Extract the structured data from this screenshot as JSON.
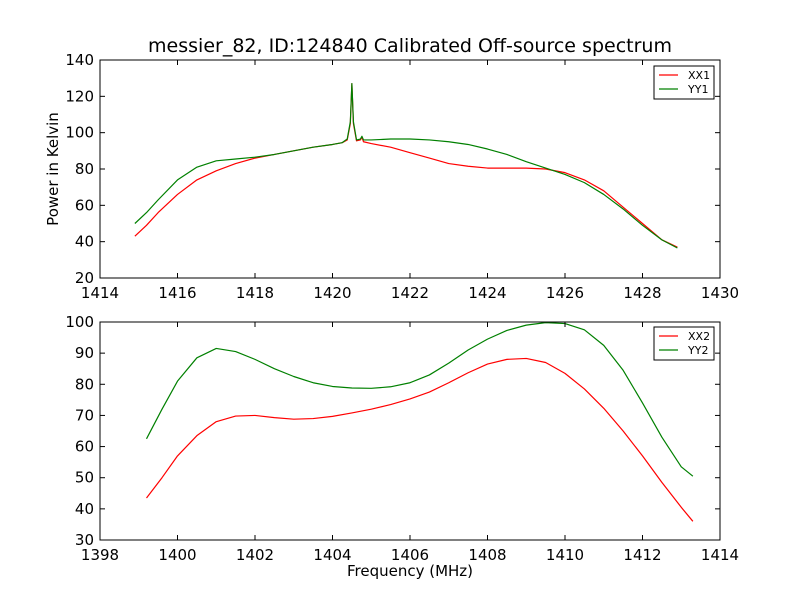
{
  "chart_data": [
    {
      "type": "line",
      "title": "messier_82, ID:124840 Calibrated Off-source spectrum",
      "xlabel": "",
      "ylabel": "Power in Kelvin",
      "xlim": [
        1414,
        1430
      ],
      "ylim": [
        20,
        140
      ],
      "xticks": [
        1414,
        1416,
        1418,
        1420,
        1422,
        1424,
        1426,
        1428,
        1430
      ],
      "yticks": [
        20,
        40,
        60,
        80,
        100,
        120,
        140
      ],
      "grid": false,
      "legend": "top-right",
      "series": [
        {
          "name": "XX1",
          "color": "#ff0000",
          "x": [
            1414.9,
            1415.2,
            1415.5,
            1416.0,
            1416.5,
            1417.0,
            1417.5,
            1418.0,
            1418.5,
            1419.0,
            1419.5,
            1420.0,
            1420.25,
            1420.38,
            1420.46,
            1420.5,
            1420.54,
            1420.62,
            1420.72,
            1420.76,
            1420.8,
            1421.0,
            1421.5,
            1422.0,
            1422.5,
            1423.0,
            1423.5,
            1424.0,
            1424.5,
            1425.0,
            1425.5,
            1426.0,
            1426.5,
            1427.0,
            1427.5,
            1428.0,
            1428.5,
            1428.9
          ],
          "y": [
            43,
            49,
            56,
            66,
            74,
            79,
            83,
            86,
            88,
            90,
            92,
            93.5,
            94.5,
            96,
            105,
            127,
            105,
            95.5,
            96,
            97.5,
            95,
            94,
            92,
            89,
            86,
            83,
            81.5,
            80.5,
            80.5,
            80.5,
            80,
            78,
            74,
            68,
            59,
            50,
            41,
            37
          ]
        },
        {
          "name": "YY1",
          "color": "#008000",
          "x": [
            1414.9,
            1415.2,
            1415.5,
            1416.0,
            1416.5,
            1417.0,
            1417.5,
            1418.0,
            1418.5,
            1419.0,
            1419.5,
            1420.0,
            1420.25,
            1420.38,
            1420.46,
            1420.5,
            1420.54,
            1420.62,
            1420.72,
            1420.76,
            1420.8,
            1421.0,
            1421.5,
            1422.0,
            1422.5,
            1423.0,
            1423.5,
            1424.0,
            1424.5,
            1425.0,
            1425.5,
            1426.0,
            1426.5,
            1427.0,
            1427.5,
            1428.0,
            1428.5,
            1428.9
          ],
          "y": [
            50,
            56,
            63,
            74,
            81,
            84.5,
            85.5,
            86.5,
            88,
            90,
            92,
            93.5,
            94.5,
            96.5,
            106,
            127,
            106,
            96,
            96.5,
            98,
            96,
            96,
            96.5,
            96.5,
            96,
            95,
            93.5,
            91,
            88,
            84,
            80.5,
            77,
            72.5,
            66,
            58,
            49,
            41,
            36.5
          ]
        }
      ]
    },
    {
      "type": "line",
      "title": "",
      "xlabel": "Frequency (MHz)",
      "ylabel": "",
      "xlim": [
        1398,
        1414
      ],
      "ylim": [
        30,
        100
      ],
      "xticks": [
        1398,
        1400,
        1402,
        1404,
        1406,
        1408,
        1410,
        1412,
        1414
      ],
      "yticks": [
        30,
        40,
        50,
        60,
        70,
        80,
        90,
        100
      ],
      "grid": false,
      "legend": "top-right",
      "series": [
        {
          "name": "XX2",
          "color": "#ff0000",
          "x": [
            1399.2,
            1399.6,
            1400.0,
            1400.5,
            1401.0,
            1401.5,
            1402.0,
            1402.5,
            1403.0,
            1403.5,
            1404.0,
            1404.5,
            1405.0,
            1405.5,
            1406.0,
            1406.5,
            1407.0,
            1407.5,
            1408.0,
            1408.5,
            1409.0,
            1409.5,
            1410.0,
            1410.5,
            1411.0,
            1411.5,
            1412.0,
            1412.5,
            1413.0,
            1413.3
          ],
          "y": [
            43.5,
            50,
            57,
            63.5,
            68,
            69.8,
            70,
            69.3,
            68.8,
            69,
            69.7,
            70.8,
            72,
            73.5,
            75.3,
            77.5,
            80.5,
            83.7,
            86.5,
            88,
            88.3,
            87,
            83.5,
            78.5,
            72.3,
            65,
            57,
            48.5,
            40.5,
            36
          ]
        },
        {
          "name": "YY2",
          "color": "#008000",
          "x": [
            1399.2,
            1399.6,
            1400.0,
            1400.5,
            1401.0,
            1401.5,
            1402.0,
            1402.5,
            1403.0,
            1403.5,
            1404.0,
            1404.5,
            1405.0,
            1405.5,
            1406.0,
            1406.5,
            1407.0,
            1407.5,
            1408.0,
            1408.5,
            1409.0,
            1409.5,
            1410.0,
            1410.5,
            1411.0,
            1411.5,
            1412.0,
            1412.5,
            1413.0,
            1413.3
          ],
          "y": [
            62.5,
            72,
            81,
            88.5,
            91.5,
            90.5,
            88,
            85,
            82.5,
            80.5,
            79.3,
            78.8,
            78.7,
            79.2,
            80.5,
            83,
            86.8,
            91,
            94.5,
            97.3,
            99,
            99.8,
            99.5,
            97.5,
            92.5,
            84.5,
            74,
            63,
            53.5,
            50.5
          ]
        }
      ]
    }
  ]
}
